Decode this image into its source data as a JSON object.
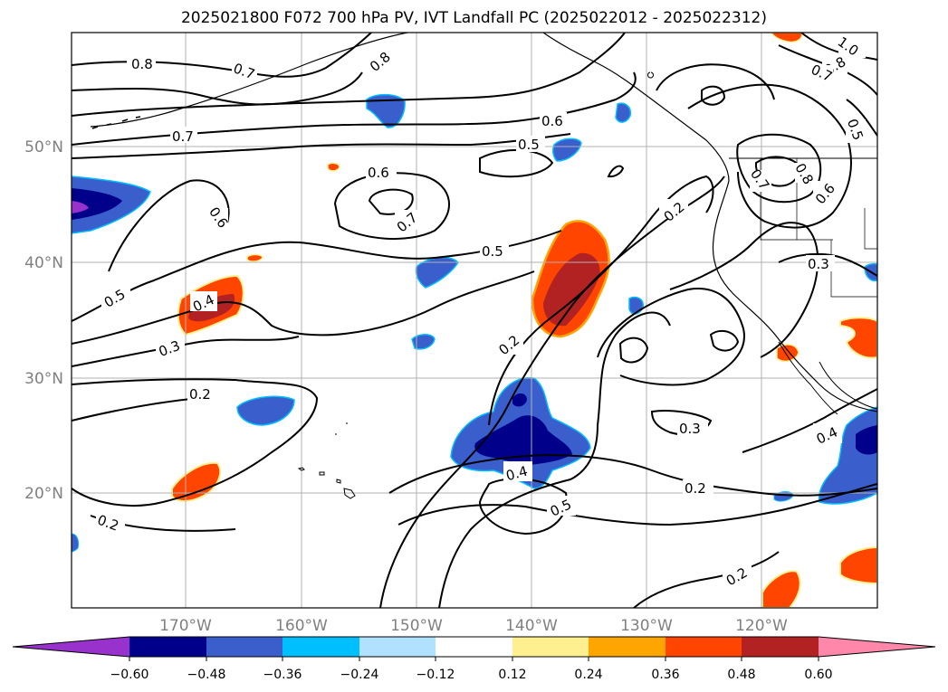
{
  "title": "2025021800 F072 700 hPa PV, IVT Landfall PC (2025022012 - 2025022312)",
  "lat_labels": [
    "50°N",
    "40°N",
    "30°N",
    "20°N"
  ],
  "lon_labels": [
    "170°W",
    "160°W",
    "150°W",
    "140°W",
    "130°W",
    "120°W"
  ],
  "colorbar": {
    "colors": [
      "#9932cc",
      "#00008b",
      "#3a5fcd",
      "#00bfff",
      "#b0e2ff",
      "#ffffff",
      "#fff08f",
      "#ffa500",
      "#ff4500",
      "#b22222",
      "#ff88aa"
    ],
    "tick_labels": [
      "−0.60",
      "−0.48",
      "−0.36",
      "−0.24",
      "−0.12",
      "0.12",
      "0.24",
      "0.36",
      "0.48",
      "0.60"
    ]
  },
  "contour_labels": [
    "0.8",
    "0.7",
    "0.8",
    "1.0",
    "0.8",
    "0.7",
    "0.5",
    "0.6",
    "0.7",
    "0.5",
    "0.6",
    "0.6",
    "0.7",
    "0.8",
    "0.7",
    "0.6",
    "0.2",
    "0.5",
    "0.5",
    "0.4",
    "0.3",
    "0.3",
    "0.2",
    "0.2",
    "0.3",
    "0.4",
    "0.4",
    "0.5",
    "0.2",
    "0.2",
    "0.2"
  ]
}
